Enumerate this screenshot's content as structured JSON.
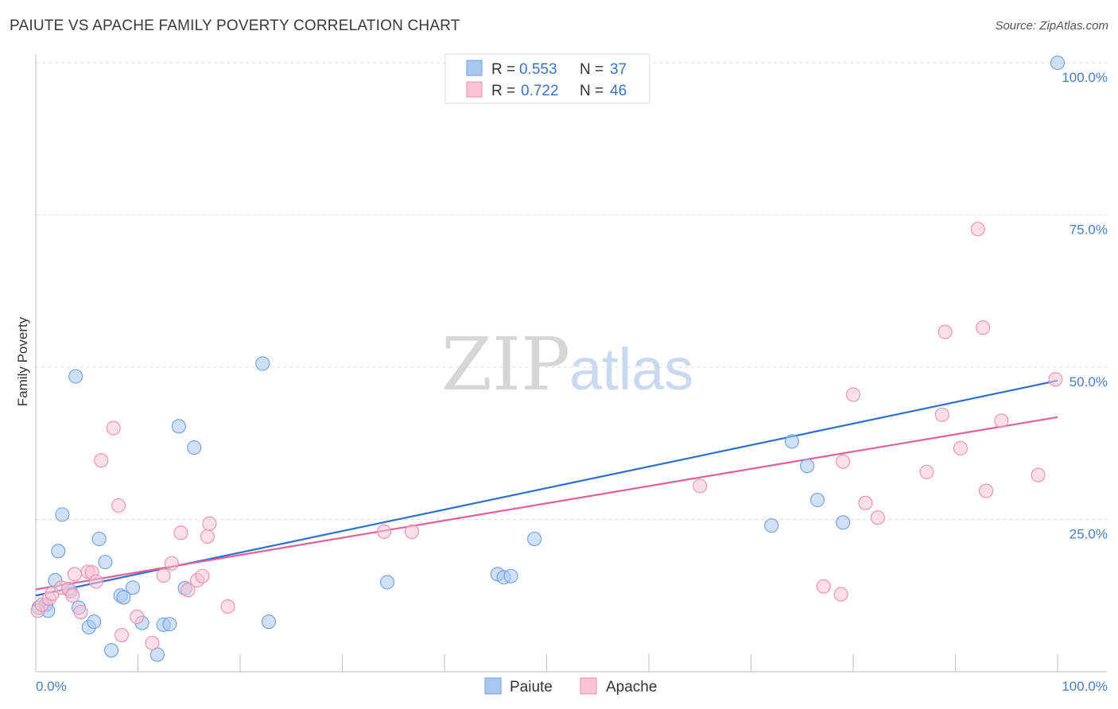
{
  "title": "PAIUTE VS APACHE FAMILY POVERTY CORRELATION CHART",
  "source": "Source: ZipAtlas.com",
  "watermark": {
    "zip": "ZIP",
    "atlas": "atlas"
  },
  "legend": {
    "rows": [
      {
        "r_label": "R =",
        "r_value": "0.553",
        "n_label": "N =",
        "n_value": "37",
        "color": "#a9c8f0",
        "edge": "#6d9fe0"
      },
      {
        "r_label": "R =",
        "r_value": "0.722",
        "n_label": "N =",
        "n_value": "46",
        "color": "#f8c3d3",
        "edge": "#eb8fae"
      }
    ]
  },
  "chart_data": {
    "type": "scatter",
    "title": "PAIUTE VS APACHE FAMILY POVERTY CORRELATION CHART",
    "xlabel": "",
    "ylabel": "Family Poverty",
    "xlim": [
      0,
      100
    ],
    "ylim": [
      0,
      100
    ],
    "x_ticks": [
      "0.0%",
      "100.0%"
    ],
    "y_ticks": [
      {
        "value": 25,
        "label": "25.0%"
      },
      {
        "value": 50,
        "label": "50.0%"
      },
      {
        "value": 75,
        "label": "75.0%"
      },
      {
        "value": 100,
        "label": "100.0%"
      }
    ],
    "grid": true,
    "legend_position": "top-center",
    "series": [
      {
        "name": "Paiute",
        "color": "#6d9fe0",
        "fill": "#a9c8f0",
        "line_color": "#2f6fcf",
        "trend": [
          [
            0,
            12.5
          ],
          [
            100,
            47.8
          ]
        ],
        "points": [
          [
            0.3,
            10.5
          ],
          [
            1.0,
            11.0
          ],
          [
            1.2,
            10.0
          ],
          [
            1.9,
            15.0
          ],
          [
            2.2,
            19.8
          ],
          [
            2.6,
            25.8
          ],
          [
            3.4,
            13.2
          ],
          [
            3.9,
            48.5
          ],
          [
            4.2,
            10.5
          ],
          [
            5.2,
            7.3
          ],
          [
            5.7,
            8.2
          ],
          [
            6.2,
            21.8
          ],
          [
            6.8,
            18.0
          ],
          [
            7.4,
            3.5
          ],
          [
            8.3,
            12.5
          ],
          [
            8.6,
            12.2
          ],
          [
            9.5,
            13.8
          ],
          [
            10.4,
            8.0
          ],
          [
            11.9,
            2.8
          ],
          [
            12.5,
            7.7
          ],
          [
            13.1,
            7.8
          ],
          [
            14.0,
            40.3
          ],
          [
            14.6,
            13.7
          ],
          [
            15.5,
            36.8
          ],
          [
            22.2,
            50.6
          ],
          [
            22.8,
            8.2
          ],
          [
            34.4,
            14.7
          ],
          [
            45.2,
            16.0
          ],
          [
            45.8,
            15.5
          ],
          [
            46.5,
            15.7
          ],
          [
            48.8,
            21.8
          ],
          [
            72.0,
            24.0
          ],
          [
            74.0,
            37.8
          ],
          [
            75.5,
            33.8
          ],
          [
            76.5,
            28.2
          ],
          [
            79.0,
            24.5
          ],
          [
            100.0,
            100.0
          ]
        ]
      },
      {
        "name": "Apache",
        "color": "#eb8fae",
        "fill": "#f8c3d3",
        "line_color": "#e0609a",
        "trend": [
          [
            0,
            13.5
          ],
          [
            100,
            41.8
          ]
        ],
        "points": [
          [
            0.2,
            10.0
          ],
          [
            0.6,
            11.0
          ],
          [
            1.3,
            12.0
          ],
          [
            1.6,
            12.8
          ],
          [
            2.5,
            13.8
          ],
          [
            3.2,
            13.6
          ],
          [
            3.6,
            12.5
          ],
          [
            3.8,
            16.0
          ],
          [
            4.4,
            9.8
          ],
          [
            5.1,
            16.4
          ],
          [
            5.5,
            16.3
          ],
          [
            5.9,
            14.8
          ],
          [
            6.4,
            34.7
          ],
          [
            7.6,
            40.0
          ],
          [
            8.1,
            27.3
          ],
          [
            8.4,
            6.0
          ],
          [
            9.9,
            9.0
          ],
          [
            11.4,
            4.7
          ],
          [
            12.5,
            15.8
          ],
          [
            13.3,
            17.8
          ],
          [
            14.2,
            22.8
          ],
          [
            14.9,
            13.4
          ],
          [
            15.8,
            15.0
          ],
          [
            16.3,
            15.7
          ],
          [
            16.8,
            22.2
          ],
          [
            17.0,
            24.3
          ],
          [
            18.8,
            10.7
          ],
          [
            34.1,
            23.0
          ],
          [
            36.8,
            23.0
          ],
          [
            65.0,
            30.5
          ],
          [
            77.1,
            14.0
          ],
          [
            78.8,
            12.7
          ],
          [
            79.0,
            34.5
          ],
          [
            80.0,
            45.5
          ],
          [
            81.2,
            27.7
          ],
          [
            82.4,
            25.3
          ],
          [
            87.2,
            32.8
          ],
          [
            88.7,
            42.2
          ],
          [
            89.0,
            55.8
          ],
          [
            90.5,
            36.7
          ],
          [
            92.2,
            72.7
          ],
          [
            92.7,
            56.5
          ],
          [
            93.0,
            29.7
          ],
          [
            94.5,
            41.2
          ],
          [
            98.1,
            32.3
          ],
          [
            99.8,
            48.0
          ]
        ]
      }
    ]
  }
}
